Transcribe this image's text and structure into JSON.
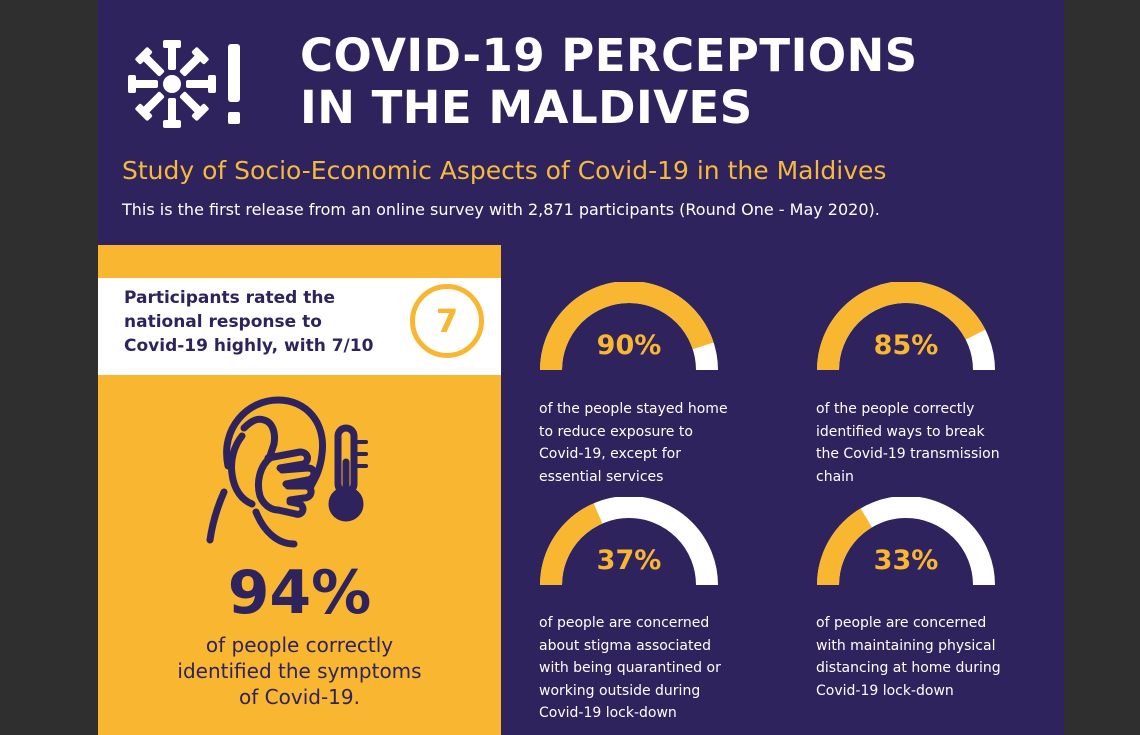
{
  "header": {
    "title_lines": [
      "COVID-19 PERCEPTIONS",
      "IN THE MALDIVES"
    ],
    "subtitle": "Study of Socio-Economic Aspects of Covid-19 in the Maldives",
    "description": "This is the first release from an online survey with 2,871 participants (Round One - May 2020)."
  },
  "rating": {
    "text_lines": [
      "Participants rated the",
      "national response to",
      "Covid-19 highly, with 7/10"
    ],
    "score": "7"
  },
  "symptoms": {
    "value_text": "94%",
    "value": 94,
    "caption_lines": [
      "of people correctly",
      "identified the symptoms",
      "of Covid-19."
    ]
  },
  "gauges": [
    {
      "value": 90,
      "label": "90%",
      "caption_lines": [
        "of the people stayed home",
        "to reduce exposure to",
        "Covid-19, except for",
        "essential services"
      ]
    },
    {
      "value": 85,
      "label": "85%",
      "caption_lines": [
        "of the people correctly",
        "identified ways to break",
        "the Covid-19 transmission",
        "chain"
      ]
    },
    {
      "value": 37,
      "label": "37%",
      "caption_lines": [
        "of people are concerned",
        "about stigma associated",
        "with being quarantined or",
        "working outside during",
        "Covid-19 lock-down"
      ]
    },
    {
      "value": 33,
      "label": "33%",
      "caption_lines": [
        "of people are  concerned",
        "with maintaining physical",
        "distancing at home during",
        "Covid-19 lock-down"
      ]
    }
  ],
  "icons": {
    "logo": "virus-alert-icon",
    "symptom": "face-cough-thermometer-icon"
  },
  "colors": {
    "background": "#2f235e",
    "accent": "#f8b631",
    "text_light": "#ffffff",
    "frame": "#2f2f2f"
  }
}
